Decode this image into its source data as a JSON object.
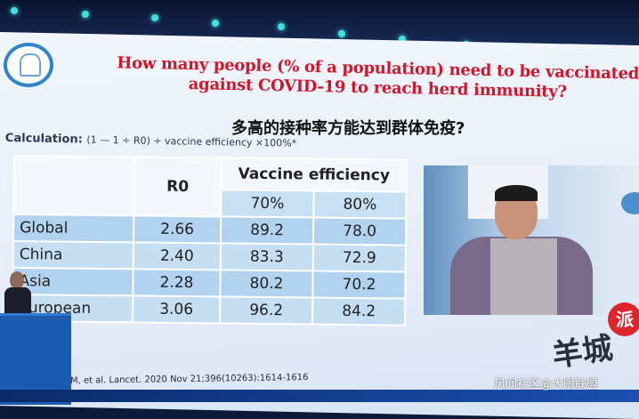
{
  "slide": {
    "title_en": "How many people (% of a population) need to be vaccinated against COVID-19 to reach herd immunity?",
    "title_cn": "多高的接种率方能达到群体免疫?",
    "calculation_label": "Calculation:",
    "calculation_formula": "(1 — 1 ÷ R0) ÷ vaccine efficiency ×100%*",
    "table": {
      "headers": {
        "r0": "R0",
        "efficiency": "Vaccine efficiency",
        "sub": [
          "70%",
          "80%"
        ]
      },
      "rows": [
        {
          "region": "Global",
          "r0": "2.66",
          "v70": "89.2",
          "v80": "78.0"
        },
        {
          "region": "China",
          "r0": "2.40",
          "v70": "83.3",
          "v80": "72.9"
        },
        {
          "region": "Asia",
          "r0": "2.28",
          "v70": "80.2",
          "v80": "70.2"
        },
        {
          "region": "European",
          "r0": "3.06",
          "v70": "96.2",
          "v80": "84.2"
        }
      ]
    },
    "citation": "RM,  et al. Lancet. 2020 Nov 21;396(10263):1614-1616"
  },
  "watermarks": {
    "yangcheng": "羊城",
    "badge": "派",
    "source": "风闻社区@大眼联盟"
  },
  "colors": {
    "title": "#d4142b",
    "table_row": "#b2d3ef",
    "podium": "#1b5cb0"
  }
}
